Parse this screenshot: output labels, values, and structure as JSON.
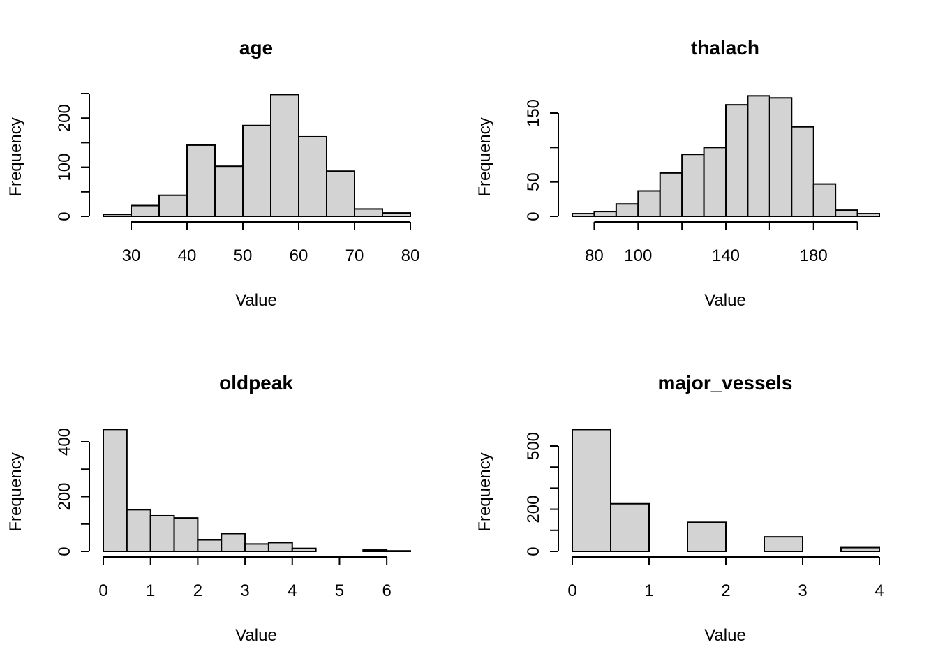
{
  "chart_data": [
    {
      "type": "bar",
      "title": "age",
      "xlabel": "Value",
      "ylabel": "Frequency",
      "bin_edges": [
        25,
        30,
        35,
        40,
        45,
        50,
        55,
        60,
        65,
        70,
        75,
        80
      ],
      "values": [
        4,
        22,
        43,
        145,
        102,
        185,
        248,
        162,
        92,
        15,
        7
      ],
      "xlim": [
        25,
        80
      ],
      "ylim": [
        0,
        250
      ],
      "x_ticks": [
        30,
        40,
        50,
        60,
        70,
        80
      ],
      "y_ticks": [
        0,
        50,
        100,
        150,
        200,
        250
      ],
      "y_tick_labels": [
        "0",
        "",
        "100",
        "",
        "200",
        ""
      ]
    },
    {
      "type": "bar",
      "title": "thalach",
      "xlabel": "Value",
      "ylabel": "Frequency",
      "bin_edges": [
        70,
        80,
        90,
        100,
        110,
        120,
        130,
        140,
        150,
        160,
        170,
        180,
        190,
        200,
        210
      ],
      "values": [
        4,
        7,
        18,
        37,
        63,
        90,
        100,
        162,
        175,
        172,
        130,
        47,
        9,
        4
      ],
      "xlim": [
        70,
        210
      ],
      "ylim": [
        0,
        150
      ],
      "x_ticks": [
        80,
        100,
        120,
        140,
        160,
        180,
        200
      ],
      "x_tick_labels": [
        "80",
        "100",
        "",
        "140",
        "",
        "180",
        ""
      ],
      "y_ticks": [
        0,
        50,
        100,
        150
      ],
      "y_tick_labels": [
        "0",
        "50",
        "",
        "150"
      ]
    },
    {
      "type": "bar",
      "title": "oldpeak",
      "xlabel": "Value",
      "ylabel": "Frequency",
      "bin_edges": [
        0,
        0.5,
        1,
        1.5,
        2,
        2.5,
        3,
        3.5,
        4,
        4.5,
        5,
        5.5,
        6,
        6.5
      ],
      "values": [
        445,
        152,
        130,
        122,
        42,
        65,
        27,
        32,
        11,
        0,
        0,
        5,
        2
      ],
      "xlim": [
        0,
        6.5
      ],
      "ylim": [
        0,
        400
      ],
      "x_ticks": [
        0,
        1,
        2,
        3,
        4,
        5,
        6
      ],
      "y_ticks": [
        0,
        100,
        200,
        300,
        400
      ],
      "y_tick_labels": [
        "0",
        "",
        "200",
        "",
        "400"
      ]
    },
    {
      "type": "bar",
      "title": "major_vessels",
      "xlabel": "Value",
      "ylabel": "Frequency",
      "bin_edges": [
        0,
        0.5,
        1,
        1.5,
        2,
        2.5,
        3,
        3.5,
        4
      ],
      "values": [
        578,
        226,
        0,
        138,
        0,
        69,
        0,
        18
      ],
      "xlim": [
        0,
        4
      ],
      "ylim": [
        0,
        500
      ],
      "x_ticks": [
        0,
        1,
        2,
        3,
        4
      ],
      "y_ticks": [
        0,
        100,
        200,
        300,
        400,
        500
      ],
      "y_tick_labels": [
        "0",
        "",
        "200",
        "",
        "",
        "500"
      ]
    }
  ]
}
